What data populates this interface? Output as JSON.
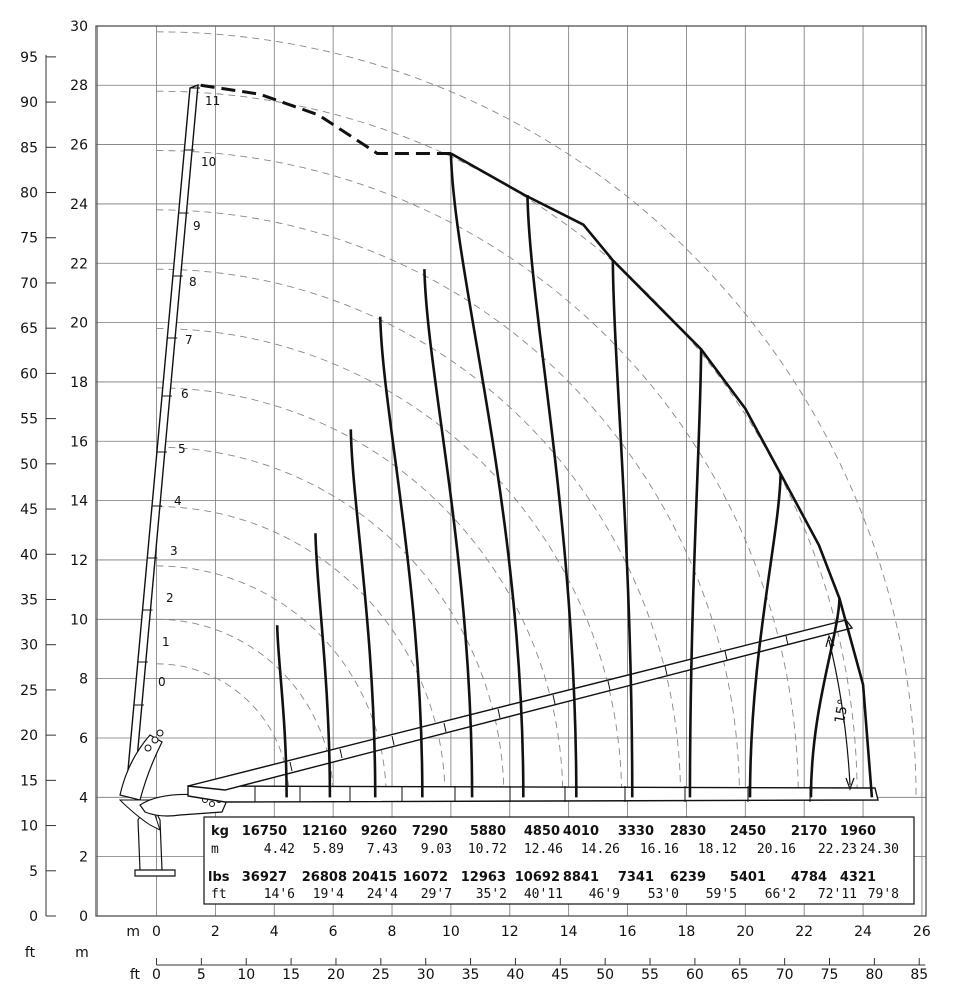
{
  "chart_data": {
    "type": "line",
    "chart_kind": "crane working range / load diagram",
    "x_axis_m": {
      "unit": "m",
      "ticks": [
        0,
        2,
        4,
        6,
        8,
        10,
        12,
        14,
        16,
        18,
        20,
        22,
        24,
        26
      ],
      "range": [
        -2,
        26
      ]
    },
    "x_axis_ft": {
      "unit": "ft",
      "ticks": [
        0,
        5,
        10,
        15,
        20,
        25,
        30,
        35,
        40,
        45,
        50,
        55,
        60,
        65,
        70,
        75,
        80,
        85
      ]
    },
    "y_axis_m": {
      "ticks": [
        0,
        2,
        4,
        6,
        8,
        10,
        12,
        14,
        16,
        18,
        20,
        22,
        24,
        26,
        28,
        30
      ],
      "range": [
        0,
        30
      ]
    },
    "y_axis_ft": {
      "unit": "ft",
      "ticks": [
        0,
        5,
        10,
        15,
        20,
        25,
        30,
        35,
        40,
        45,
        50,
        55,
        60,
        65,
        70,
        75,
        80,
        85,
        90,
        95
      ]
    },
    "grid": true,
    "boom_positions": [
      "0",
      "1",
      "2",
      "3",
      "4",
      "5",
      "6",
      "7",
      "8",
      "9",
      "10",
      "11"
    ],
    "minimum_angle_label": "15°",
    "load_table": {
      "kg_label": "kg",
      "m_label": "m",
      "lbs_label": "lbs",
      "ft_label": "ft",
      "kg": [
        "16750",
        "12160",
        "9260",
        "7290",
        "5880",
        "4850",
        "4010",
        "3330",
        "2830",
        "2450",
        "2170",
        "1960"
      ],
      "m": [
        "4.42",
        "5.89",
        "7.43",
        "9.03",
        "10.72",
        "12.46",
        "14.26",
        "16.16",
        "18.12",
        "20.16",
        "22.23",
        "24.30"
      ],
      "lbs": [
        "36927",
        "26808",
        "20415",
        "16072",
        "12963",
        "10692",
        "8841",
        "7341",
        "6239",
        "5401",
        "4784",
        "4321"
      ],
      "ft": [
        "14'6",
        "19'4",
        "24'4",
        "29'7",
        "35'2",
        "40'11",
        "46'9",
        "53'0",
        "59'5",
        "66'2",
        "72'11",
        "79'8"
      ]
    },
    "load_curves": [
      {
        "reach_m": 4.42,
        "top": [
          4.1,
          9.8
        ]
      },
      {
        "reach_m": 5.89,
        "top": [
          5.4,
          12.9
        ]
      },
      {
        "reach_m": 7.43,
        "top": [
          6.6,
          16.4
        ]
      },
      {
        "reach_m": 9.03,
        "top": [
          7.6,
          20.2
        ]
      },
      {
        "reach_m": 10.72,
        "top": [
          9.1,
          21.8
        ]
      },
      {
        "reach_m": 12.46,
        "top": [
          10.0,
          25.7
        ]
      },
      {
        "reach_m": 14.26,
        "top": [
          12.6,
          24.3
        ]
      },
      {
        "reach_m": 16.16,
        "top": [
          15.5,
          22.1
        ]
      },
      {
        "reach_m": 18.12,
        "top": [
          18.5,
          19.1
        ]
      },
      {
        "reach_m": 20.16,
        "top": [
          21.2,
          14.9
        ]
      },
      {
        "reach_m": 22.23,
        "top": [
          23.2,
          10.7
        ]
      },
      {
        "reach_m": 24.3,
        "top": [
          24.3,
          4.0
        ]
      }
    ],
    "max_envelope": [
      [
        1.5,
        28.0
      ],
      [
        3.5,
        27.7
      ],
      [
        5.5,
        27.0
      ],
      [
        7.5,
        25.7
      ],
      [
        10.0,
        25.7
      ],
      [
        12.5,
        24.3
      ],
      [
        14.5,
        23.3
      ],
      [
        15.5,
        22.1
      ],
      [
        17.0,
        20.6
      ],
      [
        18.5,
        19.1
      ],
      [
        20.0,
        17.1
      ],
      [
        21.2,
        14.9
      ],
      [
        22.5,
        12.5
      ],
      [
        23.2,
        10.7
      ],
      [
        24.0,
        7.8
      ],
      [
        24.3,
        4.0
      ]
    ],
    "arc_radii": [
      4.5,
      6.0,
      7.8,
      9.8,
      11.8,
      13.8,
      15.8,
      17.8,
      19.8,
      21.8,
      23.8,
      25.8
    ]
  }
}
